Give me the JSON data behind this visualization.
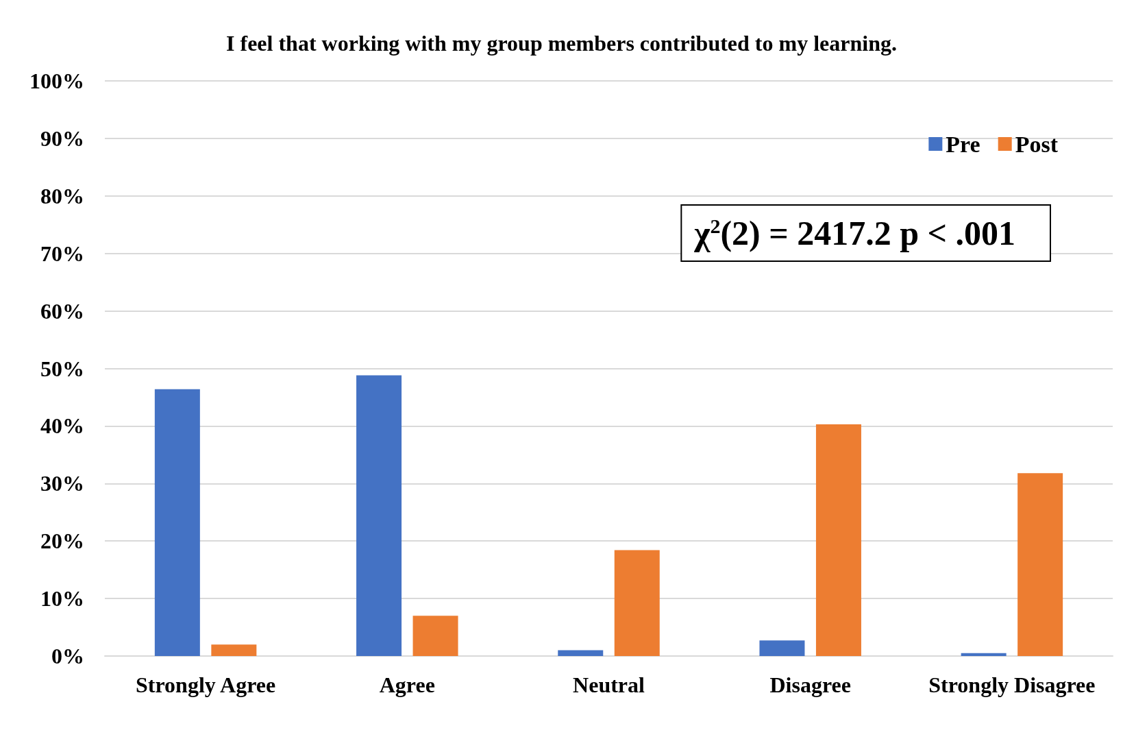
{
  "chart_data": {
    "type": "bar",
    "title": "I feel that working with my group members contributed to my learning.",
    "categories": [
      "Strongly Agree",
      "Agree",
      "Neutral",
      "Disagree",
      "Strongly Disagree"
    ],
    "series": [
      {
        "name": "Pre",
        "color": "#4472c4",
        "values": [
          46.4,
          48.8,
          1.0,
          2.7,
          0.5
        ]
      },
      {
        "name": "Post",
        "color": "#ed7d31",
        "values": [
          2.0,
          7.0,
          18.4,
          40.3,
          31.8
        ]
      }
    ],
    "ylim": [
      0,
      100
    ],
    "yticks": [
      {
        "value": 0,
        "label": "0%"
      },
      {
        "value": 10,
        "label": "10%"
      },
      {
        "value": 20,
        "label": "20%"
      },
      {
        "value": 30,
        "label": "30%"
      },
      {
        "value": 40,
        "label": "40%"
      },
      {
        "value": 50,
        "label": "50%"
      },
      {
        "value": 60,
        "label": "60%"
      },
      {
        "value": 70,
        "label": "70%"
      },
      {
        "value": 80,
        "label": "80%"
      },
      {
        "value": 90,
        "label": "90%"
      },
      {
        "value": 100,
        "label": "100%"
      }
    ],
    "grid": "y",
    "legend": "top right",
    "annotations": [
      "χ$^{2}$(2) = 2417.2 p < .001"
    ]
  }
}
